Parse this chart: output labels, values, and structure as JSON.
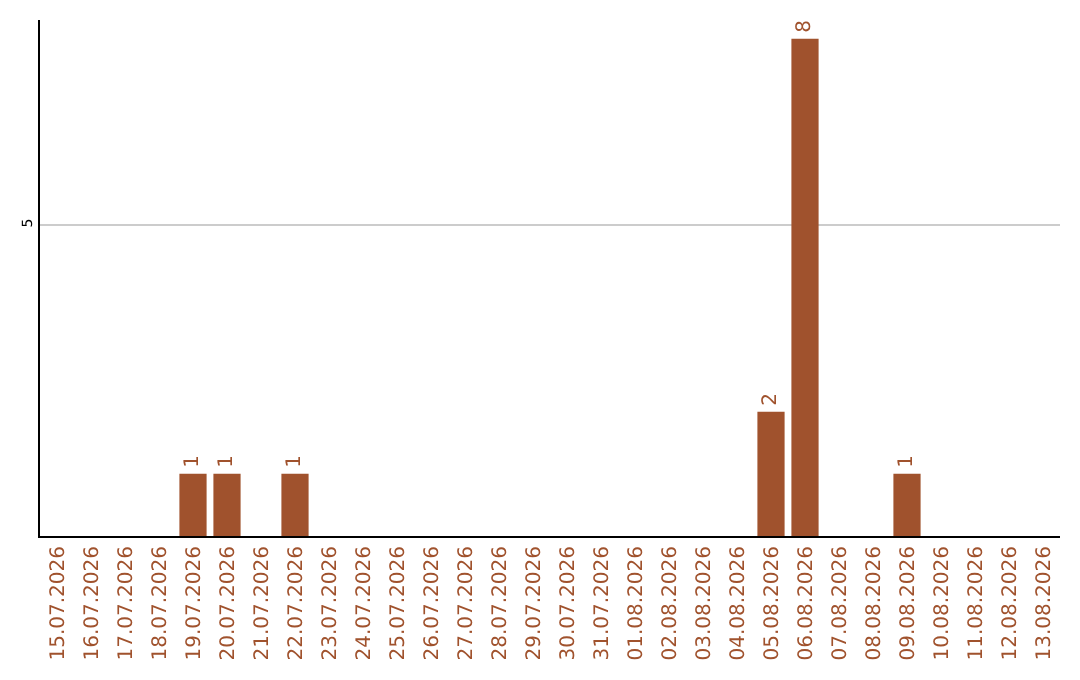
{
  "chart_data": {
    "type": "bar",
    "categories": [
      "15.07.2026",
      "16.07.2026",
      "17.07.2026",
      "18.07.2026",
      "19.07.2026",
      "20.07.2026",
      "21.07.2026",
      "22.07.2026",
      "23.07.2026",
      "24.07.2026",
      "25.07.2026",
      "26.07.2026",
      "27.07.2026",
      "28.07.2026",
      "29.07.2026",
      "30.07.2026",
      "31.07.2026",
      "01.08.2026",
      "02.08.2026",
      "03.08.2026",
      "04.08.2026",
      "05.08.2026",
      "06.08.2026",
      "07.08.2026",
      "08.08.2026",
      "09.08.2026",
      "10.08.2026",
      "11.08.2026",
      "12.08.2026",
      "13.08.2026"
    ],
    "values": [
      0,
      0,
      0,
      0,
      1,
      1,
      0,
      1,
      0,
      0,
      0,
      0,
      0,
      0,
      0,
      0,
      0,
      0,
      0,
      0,
      0,
      2,
      8,
      0,
      0,
      1,
      0,
      0,
      0,
      0
    ],
    "value_labels": [
      null,
      null,
      null,
      null,
      "1",
      "1",
      null,
      "1",
      null,
      null,
      null,
      null,
      null,
      null,
      null,
      null,
      null,
      null,
      null,
      null,
      null,
      "2",
      "8",
      null,
      null,
      "1",
      null,
      null,
      null,
      null
    ],
    "color": "#a0522d",
    "ylim": [
      0,
      8.3
    ],
    "yticks": [
      5
    ],
    "grid": "y",
    "legend": false
  }
}
